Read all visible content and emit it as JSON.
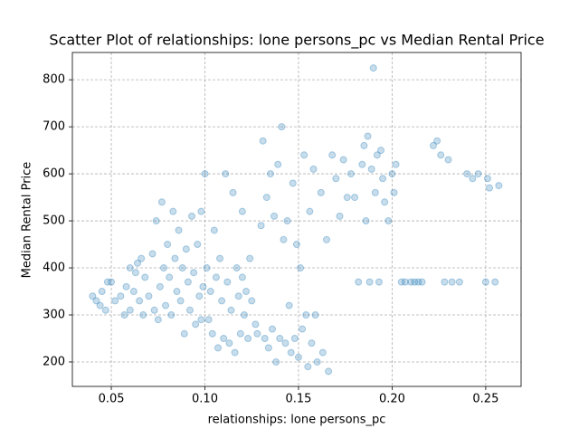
{
  "chart_data": {
    "type": "scatter",
    "title": "Scatter Plot of relationships: lone persons_pc vs Median Rental Price",
    "x_label": "relationships: lone persons_pc",
    "y_label": "Median Rental Price",
    "color": "#1f77b4",
    "grid": true,
    "xlim": [
      0.0292,
      0.2689
    ],
    "ylim": [
      148,
      858
    ],
    "xticks": [
      {
        "value": 0.05,
        "label": "0.05"
      },
      {
        "value": 0.1,
        "label": "0.10"
      },
      {
        "value": 0.15,
        "label": "0.15"
      },
      {
        "value": 0.2,
        "label": "0.20"
      },
      {
        "value": 0.25,
        "label": "0.25"
      }
    ],
    "yticks": [
      200,
      300,
      400,
      500,
      600,
      700,
      800
    ],
    "x": [
      0.04,
      0.042,
      0.044,
      0.045,
      0.047,
      0.048,
      0.05,
      0.052,
      0.055,
      0.057,
      0.058,
      0.06,
      0.06,
      0.062,
      0.063,
      0.065,
      0.066,
      0.067,
      0.068,
      0.07,
      0.072,
      0.073,
      0.074,
      0.075,
      0.076,
      0.077,
      0.078,
      0.079,
      0.08,
      0.081,
      0.082,
      0.083,
      0.084,
      0.085,
      0.086,
      0.087,
      0.088,
      0.089,
      0.09,
      0.091,
      0.092,
      0.093,
      0.094,
      0.095,
      0.096,
      0.097,
      0.098,
      0.099,
      0.1,
      0.101,
      0.102,
      0.103,
      0.104,
      0.105,
      0.106,
      0.107,
      0.108,
      0.109,
      0.11,
      0.111,
      0.112,
      0.113,
      0.114,
      0.115,
      0.116,
      0.117,
      0.118,
      0.119,
      0.12,
      0.121,
      0.122,
      0.123,
      0.124,
      0.125,
      0.127,
      0.128,
      0.13,
      0.131,
      0.132,
      0.133,
      0.134,
      0.135,
      0.136,
      0.137,
      0.138,
      0.139,
      0.14,
      0.141,
      0.142,
      0.143,
      0.144,
      0.145,
      0.146,
      0.147,
      0.148,
      0.149,
      0.15,
      0.151,
      0.152,
      0.153,
      0.154,
      0.155,
      0.156,
      0.157,
      0.158,
      0.159,
      0.16,
      0.162,
      0.163,
      0.165,
      0.166,
      0.168,
      0.17,
      0.172,
      0.174,
      0.176,
      0.178,
      0.18,
      0.182,
      0.184,
      0.185,
      0.186,
      0.187,
      0.188,
      0.189,
      0.19,
      0.191,
      0.192,
      0.193,
      0.194,
      0.195,
      0.196,
      0.198,
      0.2,
      0.201,
      0.202,
      0.205,
      0.207,
      0.21,
      0.212,
      0.214,
      0.216,
      0.222,
      0.224,
      0.226,
      0.228,
      0.23,
      0.232,
      0.236,
      0.24,
      0.243,
      0.246,
      0.25,
      0.251,
      0.252,
      0.255,
      0.257,
      0.12,
      0.098,
      0.064
    ],
    "y": [
      340,
      330,
      320,
      350,
      310,
      370,
      370,
      330,
      340,
      300,
      360,
      310,
      400,
      350,
      390,
      330,
      420,
      300,
      380,
      340,
      430,
      310,
      500,
      290,
      360,
      540,
      400,
      320,
      450,
      380,
      300,
      520,
      420,
      350,
      480,
      330,
      400,
      260,
      440,
      370,
      310,
      510,
      390,
      280,
      450,
      340,
      520,
      360,
      600,
      400,
      290,
      350,
      260,
      480,
      380,
      230,
      420,
      330,
      250,
      600,
      370,
      240,
      310,
      560,
      220,
      400,
      340,
      260,
      380,
      300,
      350,
      250,
      420,
      330,
      280,
      260,
      490,
      670,
      250,
      550,
      230,
      600,
      270,
      510,
      200,
      620,
      250,
      700,
      460,
      240,
      500,
      320,
      220,
      580,
      250,
      450,
      210,
      400,
      270,
      640,
      300,
      190,
      520,
      240,
      610,
      300,
      200,
      560,
      220,
      460,
      180,
      640,
      590,
      510,
      630,
      550,
      600,
      550,
      370,
      620,
      660,
      500,
      680,
      370,
      610,
      825,
      560,
      640,
      370,
      650,
      590,
      540,
      500,
      600,
      560,
      620,
      370,
      370,
      370,
      370,
      370,
      370,
      660,
      670,
      640,
      370,
      630,
      370,
      370,
      600,
      590,
      600,
      370,
      590,
      570,
      370,
      575,
      520,
      290,
      410
    ]
  }
}
